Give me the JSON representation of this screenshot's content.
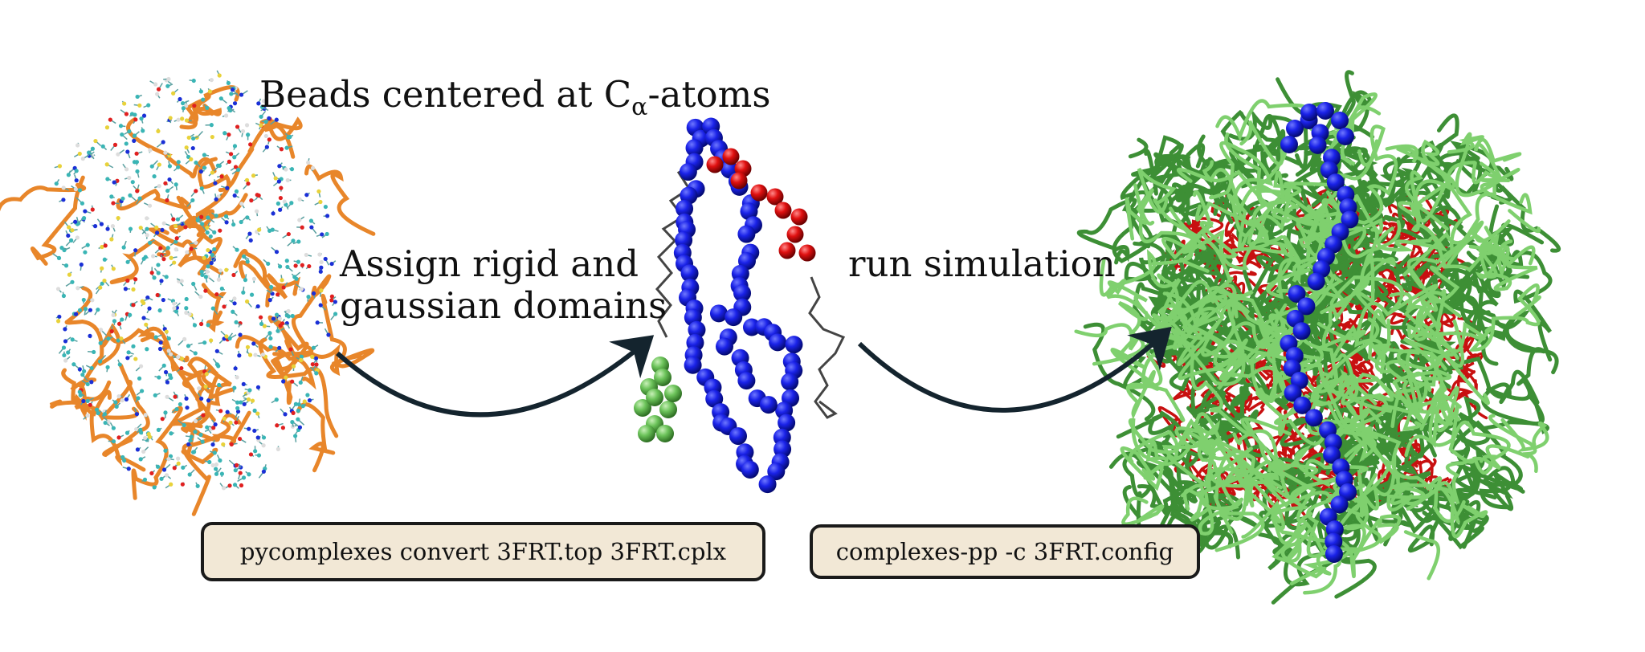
{
  "labels": {
    "beads_main": "Beads centered at C",
    "beads_sub": "α",
    "beads_tail": "-atoms",
    "assign_line1": "Assign rigid and",
    "assign_line2": "gaussian domains",
    "run": "run simulation"
  },
  "commands": {
    "convert": "pycomplexes convert 3FRT.top 3FRT.cplx",
    "simulate": "complexes-pp -c 3FRT.config"
  },
  "colors": {
    "backbone_orange": "#e8862a",
    "atom_cyan": "#3ab5b5",
    "atom_red": "#e02020",
    "atom_blue": "#1a2fd6",
    "bead_blue": "#0b13e0",
    "bead_red": "#e01010",
    "bead_green": "#6cc35a",
    "linker_gray": "#444444",
    "arrow": "#14242e",
    "box_fill": "#f2e8d6"
  },
  "icons": [
    "atomistic-protein-model",
    "coarse-grained-bead-model",
    "simulation-ensemble",
    "curved-arrow"
  ]
}
